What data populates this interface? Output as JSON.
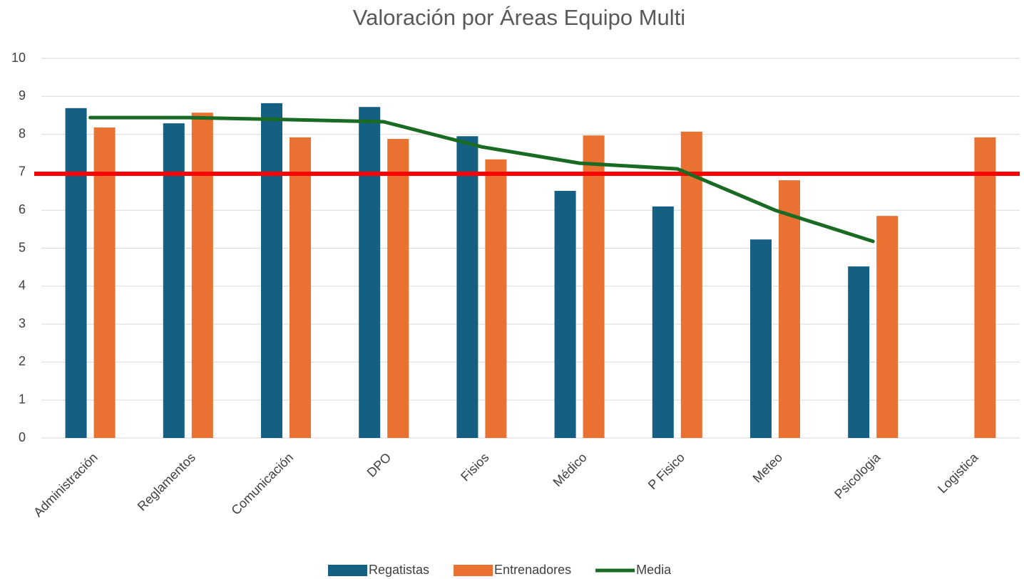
{
  "chart_data": {
    "type": "bar_line",
    "title": "Valoración por Áreas Equipo Multi",
    "categories": [
      "Administración",
      "Reglamentos",
      "Comunicación",
      "DPO",
      "Fisios",
      "Médico",
      "P Fisico",
      "Meteo",
      "Psicologia",
      "Logistica"
    ],
    "series": [
      {
        "name": "Regatistas",
        "color": "#156082",
        "kind": "bar",
        "values": [
          8.69,
          8.29,
          8.82,
          8.72,
          7.95,
          6.51,
          6.1,
          5.23,
          4.52,
          null
        ]
      },
      {
        "name": "Entrenadores",
        "color": "#e97132",
        "kind": "bar",
        "values": [
          8.18,
          8.57,
          7.92,
          7.88,
          7.34,
          7.97,
          8.07,
          6.79,
          5.85,
          7.92
        ]
      },
      {
        "name": "Media",
        "color": "#196b24",
        "kind": "line",
        "values": [
          8.44,
          8.44,
          8.39,
          8.33,
          7.67,
          7.24,
          7.09,
          6.0,
          5.18,
          null
        ]
      }
    ],
    "reference_line": 6.96,
    "reference_color": "#ff0000",
    "ylim": [
      0,
      10
    ],
    "yticks": [
      0,
      1,
      2,
      3,
      4,
      5,
      6,
      7,
      8,
      9,
      10
    ],
    "grid": true,
    "legend": "bottom"
  }
}
